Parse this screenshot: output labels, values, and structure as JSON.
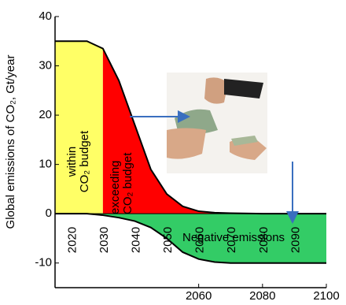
{
  "chart_data": {
    "type": "area",
    "y_label": "Global emissions of CO₂, Gt/year",
    "x": [
      2015,
      2020,
      2025,
      2030,
      2035,
      2040,
      2045,
      2050,
      2055,
      2060,
      2065,
      2070,
      2080,
      2090,
      2100
    ],
    "series": [
      {
        "color": "#000000",
        "values": [
          35,
          35,
          35,
          33.5,
          27,
          18,
          9,
          4,
          1.5,
          0.5,
          0.2,
          0.1,
          0,
          0,
          0
        ]
      },
      {
        "color": "#000000",
        "values": [
          0,
          0,
          0,
          -0.3,
          -0.8,
          -1.5,
          -2.8,
          -5,
          -7.8,
          -9.2,
          -9.8,
          -10,
          -10,
          -10,
          -10
        ]
      }
    ],
    "fill_colors": [
      "#ffff66",
      "#ff0000",
      "#33cc66"
    ],
    "xlim": [
      2015,
      2100
    ],
    "ylim": [
      -15,
      40
    ],
    "xticks": [
      2060,
      2080,
      2100
    ],
    "x_labels_rotated": [
      2020,
      2030,
      2040,
      2050,
      2060,
      2070,
      2080,
      2090
    ],
    "yticks": [
      -10,
      0,
      10,
      20,
      30,
      40
    ],
    "annotations": [
      "within",
      "CO₂ budget",
      "exceeding",
      "CO₂ budget",
      "Negative emissions"
    ]
  }
}
